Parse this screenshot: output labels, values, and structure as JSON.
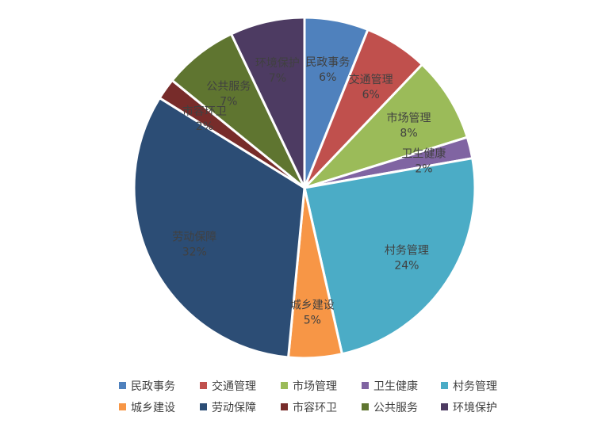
{
  "chart_data": {
    "type": "pie",
    "title": "",
    "categories": [
      "民政事务",
      "交通管理",
      "市场管理",
      "卫生健康",
      "村务管理",
      "城乡建设",
      "劳动保障",
      "市容环卫",
      "公共服务",
      "环境保护"
    ],
    "values": [
      6,
      6,
      8,
      2,
      24,
      5,
      32,
      2,
      7,
      7
    ],
    "percent_labels": [
      "6%",
      "6%",
      "8%",
      "2%",
      "24%",
      "5%",
      "32%",
      "2%",
      "7%",
      "7%"
    ],
    "colors": [
      "#4F81BD",
      "#C0504D",
      "#9BBB59",
      "#8064A2",
      "#4BACC6",
      "#F79646",
      "#2C4D75",
      "#772C2A",
      "#5F7530",
      "#4D3B62"
    ],
    "legend_position": "bottom",
    "data_labels": "category and percent"
  }
}
